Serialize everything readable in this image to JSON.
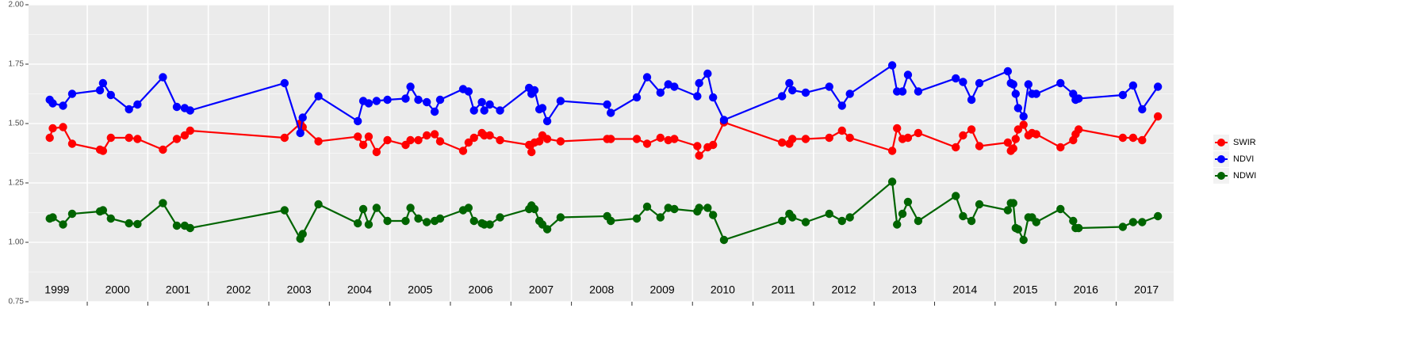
{
  "chart_data": {
    "type": "line",
    "x": [
      1999.38,
      1999.43,
      1999.6,
      1999.75,
      2000.21,
      2000.26,
      2000.39,
      2000.69,
      2000.83,
      2001.25,
      2001.48,
      2001.61,
      2001.7,
      2003.26,
      2003.52,
      2003.56,
      2003.82,
      2004.47,
      2004.56,
      2004.65,
      2004.78,
      2004.96,
      2005.26,
      2005.34,
      2005.47,
      2005.61,
      2005.74,
      2005.83,
      2006.21,
      2006.3,
      2006.39,
      2006.52,
      2006.56,
      2006.65,
      2006.82,
      2007.3,
      2007.34,
      2007.39,
      2007.47,
      2007.52,
      2007.6,
      2007.82,
      2008.59,
      2008.65,
      2009.08,
      2009.25,
      2009.47,
      2009.6,
      2009.7,
      2010.08,
      2010.11,
      2010.25,
      2010.34,
      2010.52,
      2011.48,
      2011.6,
      2011.65,
      2011.87,
      2012.26,
      2012.47,
      2012.6,
      2013.3,
      2013.38,
      2013.47,
      2013.56,
      2013.73,
      2014.35,
      2014.47,
      2014.61,
      2014.74,
      2015.21,
      2015.26,
      2015.3,
      2015.34,
      2015.38,
      2015.47,
      2015.55,
      2015.61,
      2015.68,
      2016.08,
      2016.29,
      2016.33,
      2016.38,
      2017.11,
      2017.28,
      2017.43,
      2017.69
    ],
    "series": [
      {
        "name": "SWIR",
        "color": "#ff0000",
        "values": [
          1.44,
          1.48,
          1.485,
          1.415,
          1.39,
          1.385,
          1.44,
          1.44,
          1.435,
          1.39,
          1.435,
          1.45,
          1.47,
          1.44,
          1.5,
          1.485,
          1.425,
          1.445,
          1.41,
          1.445,
          1.38,
          1.43,
          1.41,
          1.43,
          1.43,
          1.45,
          1.455,
          1.425,
          1.385,
          1.42,
          1.44,
          1.46,
          1.45,
          1.45,
          1.43,
          1.41,
          1.38,
          1.42,
          1.425,
          1.45,
          1.435,
          1.425,
          1.435,
          1.435,
          1.435,
          1.415,
          1.44,
          1.43,
          1.435,
          1.405,
          1.365,
          1.4,
          1.41,
          1.505,
          1.42,
          1.415,
          1.435,
          1.435,
          1.44,
          1.47,
          1.44,
          1.385,
          1.48,
          1.435,
          1.44,
          1.46,
          1.4,
          1.45,
          1.475,
          1.405,
          1.42,
          1.385,
          1.395,
          1.435,
          1.475,
          1.495,
          1.45,
          1.46,
          1.455,
          1.4,
          1.43,
          1.455,
          1.475,
          1.44,
          1.44,
          1.43,
          1.53
        ]
      },
      {
        "name": "NDVI",
        "color": "#0000ff",
        "values": [
          1.6,
          1.585,
          1.575,
          1.625,
          1.64,
          1.67,
          1.62,
          1.56,
          1.58,
          1.695,
          1.57,
          1.565,
          1.555,
          1.67,
          1.46,
          1.525,
          1.615,
          1.51,
          1.595,
          1.585,
          1.595,
          1.6,
          1.605,
          1.655,
          1.6,
          1.59,
          1.55,
          1.6,
          1.645,
          1.635,
          1.555,
          1.59,
          1.555,
          1.58,
          1.555,
          1.65,
          1.625,
          1.64,
          1.56,
          1.565,
          1.51,
          1.595,
          1.58,
          1.545,
          1.61,
          1.695,
          1.63,
          1.665,
          1.655,
          1.615,
          1.67,
          1.71,
          1.61,
          1.515,
          1.615,
          1.67,
          1.64,
          1.63,
          1.655,
          1.575,
          1.625,
          1.745,
          1.635,
          1.635,
          1.705,
          1.635,
          1.69,
          1.675,
          1.6,
          1.67,
          1.72,
          1.67,
          1.665,
          1.625,
          1.565,
          1.53,
          1.665,
          1.625,
          1.625,
          1.67,
          1.625,
          1.6,
          1.605,
          1.62,
          1.66,
          1.56,
          1.655
        ]
      },
      {
        "name": "NDWI",
        "color": "#006400",
        "values": [
          1.1,
          1.105,
          1.075,
          1.12,
          1.13,
          1.135,
          1.1,
          1.08,
          1.077,
          1.165,
          1.07,
          1.07,
          1.06,
          1.135,
          1.015,
          1.035,
          1.16,
          1.08,
          1.14,
          1.075,
          1.145,
          1.09,
          1.09,
          1.145,
          1.1,
          1.085,
          1.09,
          1.1,
          1.135,
          1.145,
          1.09,
          1.08,
          1.075,
          1.075,
          1.105,
          1.14,
          1.155,
          1.14,
          1.09,
          1.075,
          1.055,
          1.105,
          1.11,
          1.09,
          1.1,
          1.15,
          1.105,
          1.145,
          1.14,
          1.13,
          1.145,
          1.145,
          1.115,
          1.01,
          1.09,
          1.12,
          1.105,
          1.085,
          1.12,
          1.09,
          1.105,
          1.255,
          1.075,
          1.12,
          1.17,
          1.09,
          1.195,
          1.11,
          1.09,
          1.16,
          1.135,
          1.165,
          1.165,
          1.06,
          1.055,
          1.01,
          1.105,
          1.105,
          1.085,
          1.14,
          1.09,
          1.06,
          1.06,
          1.065,
          1.085,
          1.085,
          1.11
        ]
      }
    ],
    "xlim": [
      1999.03,
      2017.95
    ],
    "xticks": [
      {
        "value": 1999.5,
        "label": "1999"
      },
      {
        "value": 2000.5,
        "label": "2000"
      },
      {
        "value": 2001.5,
        "label": "2001"
      },
      {
        "value": 2002.5,
        "label": "2002"
      },
      {
        "value": 2003.5,
        "label": "2003"
      },
      {
        "value": 2004.5,
        "label": "2004"
      },
      {
        "value": 2005.5,
        "label": "2005"
      },
      {
        "value": 2006.5,
        "label": "2006"
      },
      {
        "value": 2007.5,
        "label": "2007"
      },
      {
        "value": 2008.5,
        "label": "2008"
      },
      {
        "value": 2009.5,
        "label": "2009"
      },
      {
        "value": 2010.5,
        "label": "2010"
      },
      {
        "value": 2011.5,
        "label": "2011"
      },
      {
        "value": 2012.5,
        "label": "2012"
      },
      {
        "value": 2013.5,
        "label": "2013"
      },
      {
        "value": 2014.5,
        "label": "2014"
      },
      {
        "value": 2015.5,
        "label": "2015"
      },
      {
        "value": 2016.5,
        "label": "2016"
      },
      {
        "value": 2017.5,
        "label": "2017"
      }
    ],
    "ylim": [
      0.75,
      2.0
    ],
    "yticks": [
      {
        "value": 0.75,
        "label": "0.75"
      },
      {
        "value": 1.0,
        "label": "1.00"
      },
      {
        "value": 1.25,
        "label": "1.25"
      },
      {
        "value": 1.5,
        "label": "1.50"
      },
      {
        "value": 1.75,
        "label": "1.75"
      },
      {
        "value": 2.0,
        "label": "2.00"
      }
    ],
    "grid": true,
    "legend": "right"
  }
}
